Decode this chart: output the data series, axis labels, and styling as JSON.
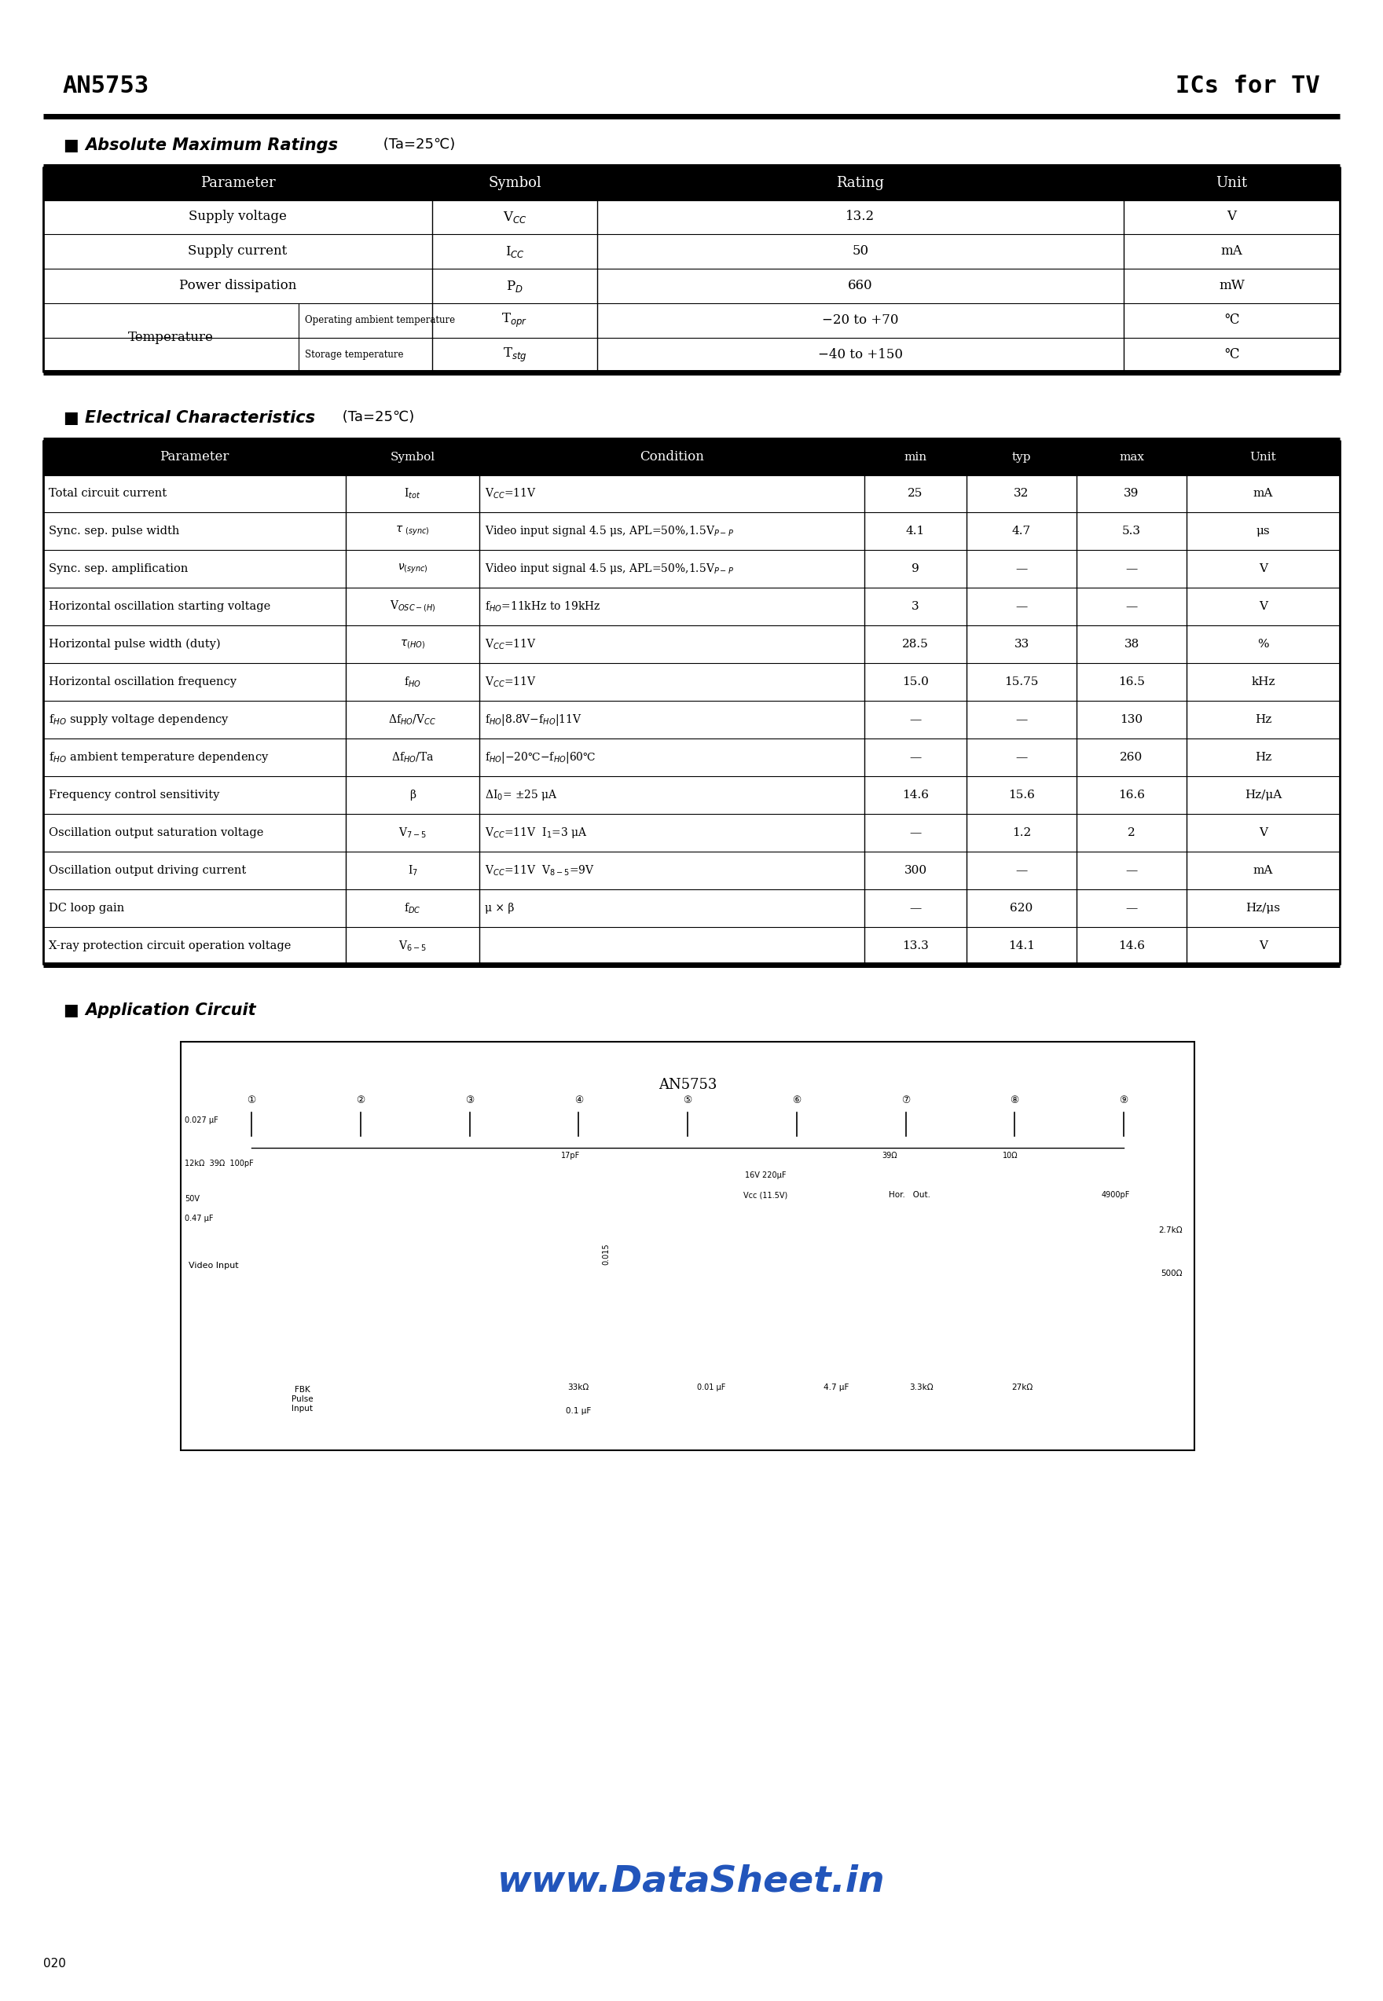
{
  "page_title_left": "AN5753",
  "page_title_right": "ICs for TV",
  "watermark": "www.DataSheet.in",
  "bg_color": "#ffffff"
}
